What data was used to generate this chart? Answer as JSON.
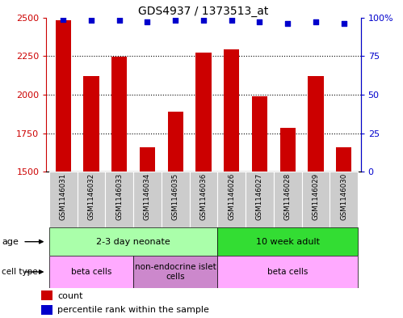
{
  "title": "GDS4937 / 1373513_at",
  "samples": [
    "GSM1146031",
    "GSM1146032",
    "GSM1146033",
    "GSM1146034",
    "GSM1146035",
    "GSM1146036",
    "GSM1146026",
    "GSM1146027",
    "GSM1146028",
    "GSM1146029",
    "GSM1146030"
  ],
  "counts": [
    2480,
    2120,
    2245,
    1660,
    1890,
    2270,
    2295,
    1990,
    1785,
    2120,
    1660
  ],
  "percentiles": [
    99,
    98,
    98,
    97,
    98,
    98,
    98,
    97,
    96,
    97,
    96
  ],
  "ylim_left": [
    1500,
    2500
  ],
  "ylim_right": [
    0,
    100
  ],
  "yticks_left": [
    1500,
    1750,
    2000,
    2250,
    2500
  ],
  "yticks_right": [
    0,
    25,
    50,
    75,
    100
  ],
  "bar_color": "#cc0000",
  "dot_color": "#0000cc",
  "age_groups": [
    {
      "label": "2-3 day neonate",
      "start": 0,
      "end": 6,
      "color": "#aaffaa"
    },
    {
      "label": "10 week adult",
      "start": 6,
      "end": 11,
      "color": "#33dd33"
    }
  ],
  "cell_type_groups": [
    {
      "label": "beta cells",
      "start": 0,
      "end": 3,
      "color": "#ffaaff"
    },
    {
      "label": "non-endocrine islet\ncells",
      "start": 3,
      "end": 6,
      "color": "#cc88cc"
    },
    {
      "label": "beta cells",
      "start": 6,
      "end": 11,
      "color": "#ffaaff"
    }
  ],
  "background_color": "#ffffff",
  "title_fontsize": 10,
  "bar_width": 0.55,
  "label_row_color": "#cccccc",
  "border_color": "#000000"
}
